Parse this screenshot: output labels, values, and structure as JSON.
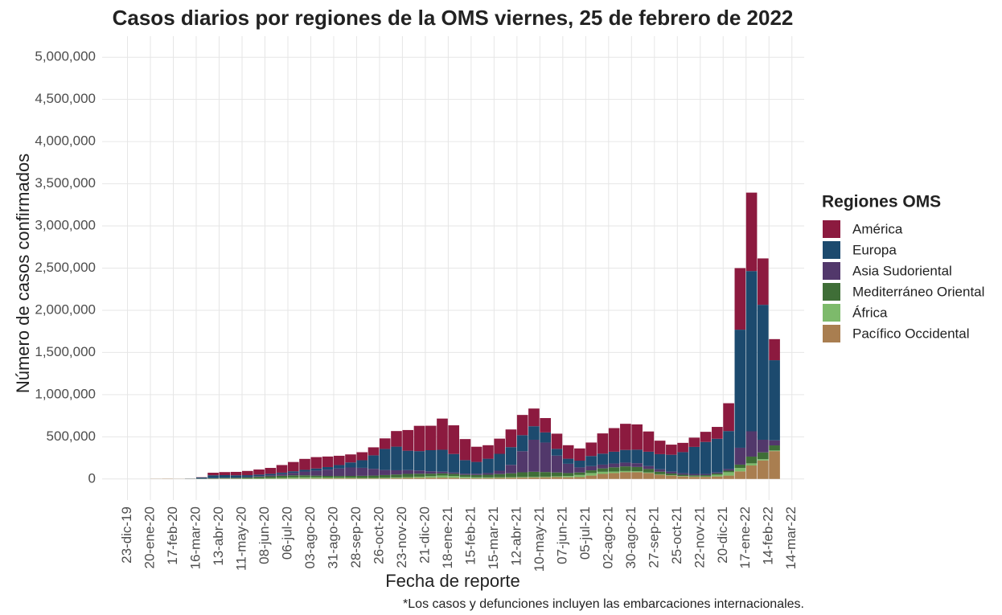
{
  "chart_data": {
    "type": "bar",
    "stacked": true,
    "title": "Casos diarios por regiones de la OMS viernes, 25 de febrero de 2022",
    "x_label": "Fecha de reporte",
    "y_label": "Número de casos confirmados",
    "caption": "*Los casos y defunciones incluyen las embarcaciones internacionales.",
    "legend_title": "Regiones OMS",
    "legend": "right",
    "grid": true,
    "x": [
      "2020-01-20",
      "2020-02-03",
      "2020-02-17",
      "2020-03-02",
      "2020-03-16",
      "2020-03-30",
      "2020-04-13",
      "2020-04-27",
      "2020-05-11",
      "2020-05-25",
      "2020-06-08",
      "2020-06-22",
      "2020-07-06",
      "2020-07-20",
      "2020-08-03",
      "2020-08-17",
      "2020-08-31",
      "2020-09-14",
      "2020-09-28",
      "2020-10-12",
      "2020-10-26",
      "2020-11-09",
      "2020-11-23",
      "2020-12-07",
      "2020-12-21",
      "2021-01-04",
      "2021-01-18",
      "2021-02-01",
      "2021-02-15",
      "2021-03-01",
      "2021-03-15",
      "2021-03-29",
      "2021-04-12",
      "2021-04-26",
      "2021-05-10",
      "2021-05-24",
      "2021-06-07",
      "2021-06-21",
      "2021-07-05",
      "2021-07-19",
      "2021-08-02",
      "2021-08-16",
      "2021-08-30",
      "2021-09-13",
      "2021-09-27",
      "2021-10-11",
      "2021-10-25",
      "2021-11-08",
      "2021-11-22",
      "2021-12-06",
      "2021-12-20",
      "2022-01-03",
      "2022-01-17",
      "2022-01-31",
      "2022-02-14"
    ],
    "bar_days": 14,
    "xlim": [
      "2019-11-22",
      "2022-03-29"
    ],
    "xticks": [
      {
        "value": "2019-12-23",
        "label": "23-dic-19"
      },
      {
        "value": "2020-01-20",
        "label": "20-ene-20"
      },
      {
        "value": "2020-02-17",
        "label": "17-feb-20"
      },
      {
        "value": "2020-03-16",
        "label": "16-mar-20"
      },
      {
        "value": "2020-04-13",
        "label": "13-abr-20"
      },
      {
        "value": "2020-05-11",
        "label": "11-may-20"
      },
      {
        "value": "2020-06-08",
        "label": "08-jun-20"
      },
      {
        "value": "2020-07-06",
        "label": "06-jul-20"
      },
      {
        "value": "2020-08-03",
        "label": "03-ago-20"
      },
      {
        "value": "2020-08-31",
        "label": "31-ago-20"
      },
      {
        "value": "2020-09-28",
        "label": "28-sep-20"
      },
      {
        "value": "2020-10-26",
        "label": "26-oct-20"
      },
      {
        "value": "2020-11-23",
        "label": "23-nov-20"
      },
      {
        "value": "2020-12-21",
        "label": "21-dic-20"
      },
      {
        "value": "2021-01-18",
        "label": "18-ene-21"
      },
      {
        "value": "2021-02-15",
        "label": "15-feb-21"
      },
      {
        "value": "2021-03-15",
        "label": "15-mar-21"
      },
      {
        "value": "2021-04-12",
        "label": "12-abr-21"
      },
      {
        "value": "2021-05-10",
        "label": "10-may-21"
      },
      {
        "value": "2021-06-07",
        "label": "07-jun-21"
      },
      {
        "value": "2021-07-05",
        "label": "05-jul-21"
      },
      {
        "value": "2021-08-02",
        "label": "02-ago-21"
      },
      {
        "value": "2021-08-30",
        "label": "30-ago-21"
      },
      {
        "value": "2021-09-27",
        "label": "27-sep-21"
      },
      {
        "value": "2021-10-25",
        "label": "25-oct-21"
      },
      {
        "value": "2021-11-22",
        "label": "22-nov-21"
      },
      {
        "value": "2021-12-20",
        "label": "20-dic-21"
      },
      {
        "value": "2022-01-17",
        "label": "17-ene-22"
      },
      {
        "value": "2022-02-14",
        "label": "14-feb-22"
      },
      {
        "value": "2022-03-14",
        "label": "14-mar-22"
      }
    ],
    "ylim": [
      -250000,
      5250000
    ],
    "yticks": [
      0,
      {
        "value": 500000,
        "label": "500,000"
      },
      {
        "value": 1000000,
        "label": "1,000,000"
      },
      {
        "value": 1500000,
        "label": "1,500,000"
      },
      {
        "value": 2000000,
        "label": "2,000,000"
      },
      {
        "value": 2500000,
        "label": "2,500,000"
      },
      {
        "value": 3000000,
        "label": "3,000,000"
      },
      {
        "value": 3500000,
        "label": "3,500,000"
      },
      {
        "value": 4000000,
        "label": "4,000,000"
      },
      {
        "value": 4500000,
        "label": "4,500,000"
      },
      {
        "value": 5000000,
        "label": "5,000,000"
      }
    ],
    "series": [
      {
        "name": "América",
        "color": "#8c1a3f",
        "values": [
          0,
          0,
          0,
          500,
          3000,
          30000,
          36000,
          40000,
          50000,
          60000,
          70000,
          90000,
          110000,
          130000,
          135000,
          125000,
          110000,
          95000,
          95000,
          95000,
          125000,
          185000,
          245000,
          300000,
          290000,
          370000,
          340000,
          250000,
          180000,
          160000,
          180000,
          210000,
          240000,
          210000,
          170000,
          180000,
          160000,
          145000,
          160000,
          240000,
          280000,
          310000,
          300000,
          240000,
          160000,
          120000,
          110000,
          110000,
          120000,
          140000,
          330000,
          730000,
          930000,
          550000,
          250000
        ]
      },
      {
        "name": "Europa",
        "color": "#1c4a6e",
        "values": [
          0,
          0,
          100,
          1500,
          14000,
          35000,
          32000,
          28000,
          22000,
          18000,
          17000,
          17000,
          18000,
          20000,
          25000,
          30000,
          40000,
          60000,
          90000,
          160000,
          250000,
          280000,
          230000,
          230000,
          250000,
          260000,
          220000,
          160000,
          140000,
          170000,
          200000,
          210000,
          190000,
          160000,
          120000,
          80000,
          60000,
          80000,
          120000,
          130000,
          140000,
          150000,
          160000,
          170000,
          180000,
          200000,
          250000,
          320000,
          380000,
          400000,
          450000,
          1400000,
          1900000,
          1600000,
          950000
        ]
      },
      {
        "name": "Asia Sudoriental",
        "color": "#52386b",
        "values": [
          0,
          0,
          0,
          0,
          200,
          1000,
          2000,
          3000,
          6000,
          9000,
          13000,
          20000,
          30000,
          45000,
          60000,
          75000,
          90000,
          100000,
          95000,
          80000,
          60000,
          50000,
          45000,
          38000,
          28000,
          20000,
          15000,
          14000,
          15000,
          20000,
          40000,
          100000,
          250000,
          380000,
          350000,
          200000,
          110000,
          60000,
          50000,
          45000,
          45000,
          45000,
          45000,
          35000,
          28000,
          22000,
          18000,
          16000,
          14000,
          12000,
          20000,
          200000,
          300000,
          150000,
          60000
        ]
      },
      {
        "name": "Mediterráneo Oriental",
        "color": "#3f6e37",
        "values": [
          0,
          0,
          100,
          1000,
          2000,
          4000,
          6000,
          8000,
          12000,
          18000,
          22000,
          25000,
          25000,
          23000,
          20000,
          19000,
          20000,
          22000,
          25000,
          28000,
          32000,
          35000,
          38000,
          35000,
          30000,
          25000,
          25000,
          25000,
          28000,
          32000,
          38000,
          45000,
          55000,
          60000,
          55000,
          45000,
          35000,
          30000,
          32000,
          40000,
          50000,
          55000,
          50000,
          40000,
          30000,
          20000,
          15000,
          14000,
          14000,
          15000,
          18000,
          40000,
          80000,
          80000,
          60000
        ]
      },
      {
        "name": "África",
        "color": "#7dba6b",
        "values": [
          0,
          0,
          0,
          0,
          100,
          1000,
          1500,
          2000,
          3000,
          5000,
          7000,
          10000,
          14000,
          15000,
          13000,
          10000,
          8000,
          7000,
          6000,
          6000,
          7000,
          8000,
          10000,
          13000,
          18000,
          25000,
          22000,
          14000,
          10000,
          8000,
          8000,
          8000,
          8000,
          7000,
          7000,
          10000,
          15000,
          25000,
          30000,
          25000,
          18000,
          14000,
          12000,
          8000,
          6000,
          5000,
          5000,
          5000,
          6000,
          20000,
          40000,
          40000,
          25000,
          15000,
          8000
        ]
      },
      {
        "name": "Pacífico Occidental",
        "color": "#a97e50",
        "values": [
          2000,
          3000,
          1500,
          1000,
          1500,
          3000,
          4000,
          3000,
          2000,
          2000,
          2000,
          3000,
          4000,
          5000,
          6000,
          7000,
          7000,
          7000,
          6000,
          6000,
          7000,
          10000,
          12000,
          14000,
          15000,
          16000,
          14000,
          10000,
          9000,
          10000,
          12000,
          14000,
          16000,
          18000,
          20000,
          22000,
          20000,
          22000,
          40000,
          60000,
          70000,
          80000,
          80000,
          70000,
          50000,
          40000,
          30000,
          25000,
          25000,
          30000,
          40000,
          90000,
          160000,
          220000,
          330000
        ]
      }
    ]
  }
}
